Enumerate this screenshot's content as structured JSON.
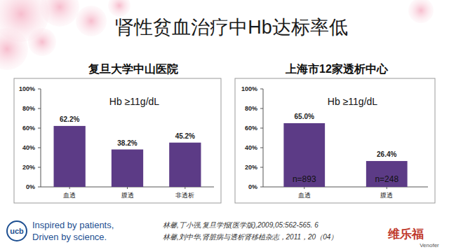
{
  "slide": {
    "title": "肾性贫血治疗中Hb达标率低",
    "references": [
      "林馨,丁小强,复旦学报(医学版),2009,05:562-565. 6",
      "林馨,刘中华,肾脏病与透析肾移植杂志，2011，20（04）"
    ],
    "company": "ucb",
    "slogan": [
      "Inspired by patients,",
      "Driven by science."
    ],
    "brand": "维乐福",
    "brand_en": "Venofer"
  },
  "chart_data": [
    {
      "type": "bar",
      "title": "复旦大学中山医院",
      "categories": [
        "血透",
        "腹透",
        "非透析"
      ],
      "values": [
        62.2,
        38.2,
        45.2
      ],
      "value_labels": [
        "62.2%",
        "38.2%",
        "45.2%"
      ],
      "color": "#5c3b86",
      "ylim": [
        0,
        100
      ],
      "yticks": [
        {
          "value": 0,
          "label": "0%"
        },
        {
          "value": 20,
          "label": "20%"
        },
        {
          "value": 40,
          "label": "40%"
        },
        {
          "value": 60,
          "label": "60%"
        },
        {
          "value": 80,
          "label": "80%"
        },
        {
          "value": 100,
          "label": "100%"
        }
      ],
      "grid": false,
      "data_labels": true,
      "annotations": [
        "Hb ≥11g/dL"
      ]
    },
    {
      "type": "bar",
      "title": "上海市12家透析中心",
      "categories": [
        "血透",
        "腹透"
      ],
      "values": [
        65.0,
        26.4
      ],
      "value_labels": [
        "65.0%",
        "26.4%"
      ],
      "color": "#5c3b86",
      "ylim": [
        0,
        100
      ],
      "yticks": [
        {
          "value": 0,
          "label": "0%"
        },
        {
          "value": 20,
          "label": "20%"
        },
        {
          "value": 40,
          "label": "40%"
        },
        {
          "value": 60,
          "label": "60%"
        },
        {
          "value": 80,
          "label": "80%"
        },
        {
          "value": 100,
          "label": "100%"
        }
      ],
      "grid": false,
      "data_labels": true,
      "annotations": [
        "Hb ≥11g/dL"
      ],
      "bar_labels": [
        "n=893",
        "n=248"
      ]
    }
  ]
}
